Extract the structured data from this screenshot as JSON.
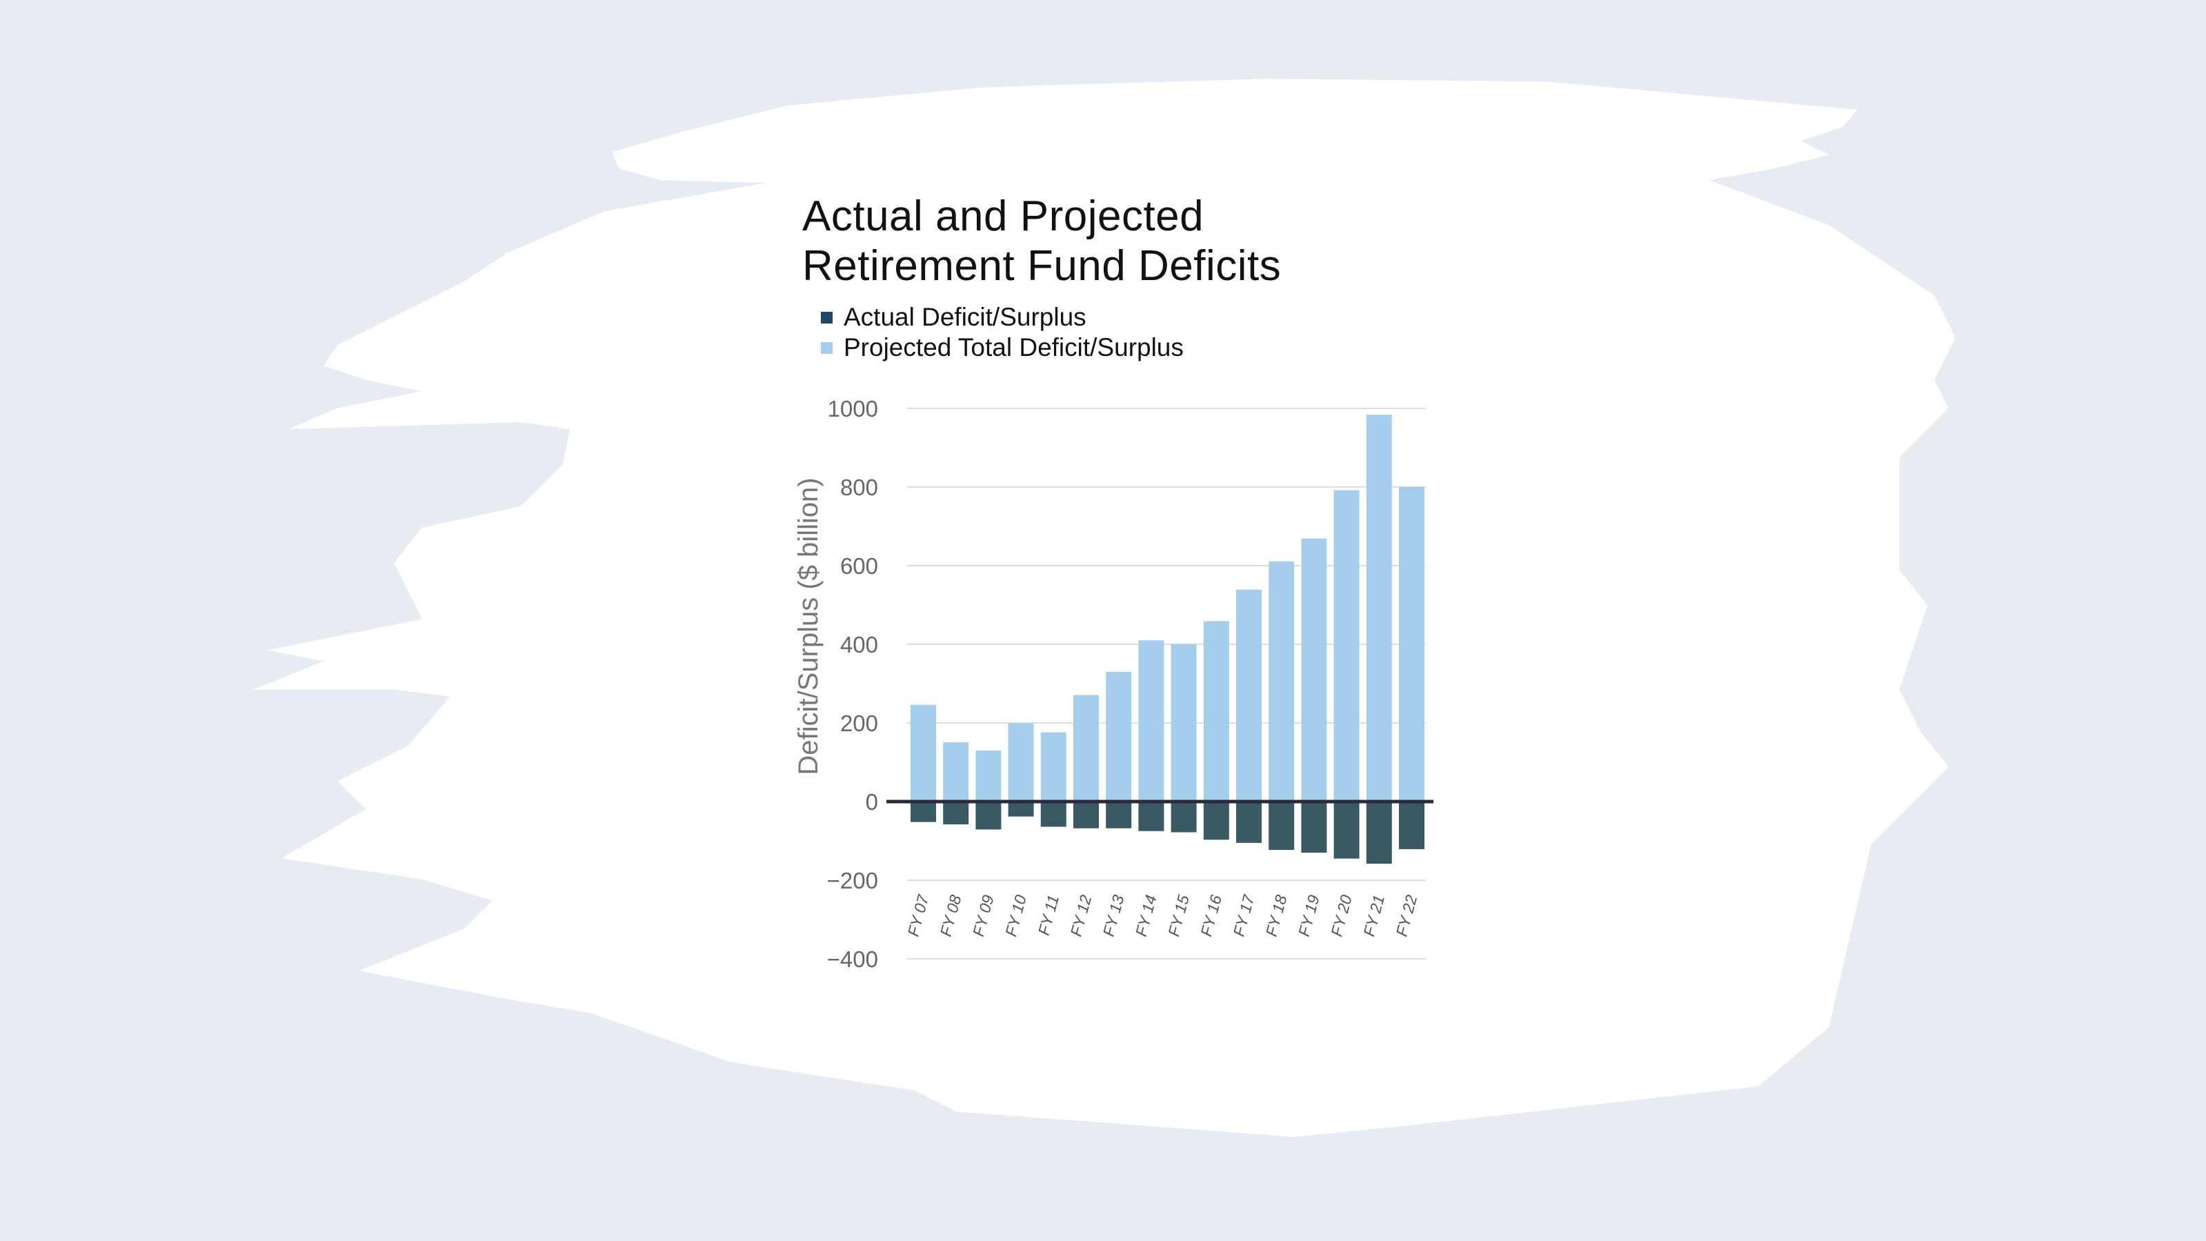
{
  "chart_data": {
    "type": "bar",
    "title": "Actual and Projected Retirement Fund Deficits",
    "title_lines": [
      "Actual and Projected",
      "Retirement Fund Deficits"
    ],
    "xlabel": "",
    "ylabel": "Deficit/Surplus ($ billion)",
    "ylim": [
      -400,
      1000
    ],
    "yticks": [
      1000,
      800,
      600,
      400,
      200,
      0,
      -200,
      -400
    ],
    "grid": true,
    "legend_position": "top-left",
    "categories": [
      "FY 07",
      "FY 08",
      "FY 09",
      "FY 10",
      "FY 11",
      "FY 12",
      "FY 13",
      "FY 14",
      "FY 15",
      "FY 16",
      "FY 17",
      "FY 18",
      "FY 19",
      "FY 20",
      "FY 21",
      "FY 22"
    ],
    "series": [
      {
        "name": "Actual Deficit/Surplus",
        "color": "#3a5a63",
        "legend_color": "#1f4766",
        "values": [
          -52,
          -58,
          -71,
          -38,
          -64,
          -68,
          -68,
          -75,
          -78,
          -97,
          -105,
          -123,
          -130,
          -145,
          -158,
          -121
        ]
      },
      {
        "name": "Projected Total Deficit/Surplus",
        "color": "#a5ceec",
        "legend_color": "#a5ceec",
        "values": [
          246,
          151,
          130,
          199,
          176,
          271,
          330,
          410,
          401,
          459,
          539,
          611,
          669,
          792,
          984,
          800
        ]
      }
    ]
  },
  "colors": {
    "background": "#e6ecf2",
    "card": "#ffffff",
    "zero_line": "#2a2a3a",
    "grid": "#dddddd"
  }
}
